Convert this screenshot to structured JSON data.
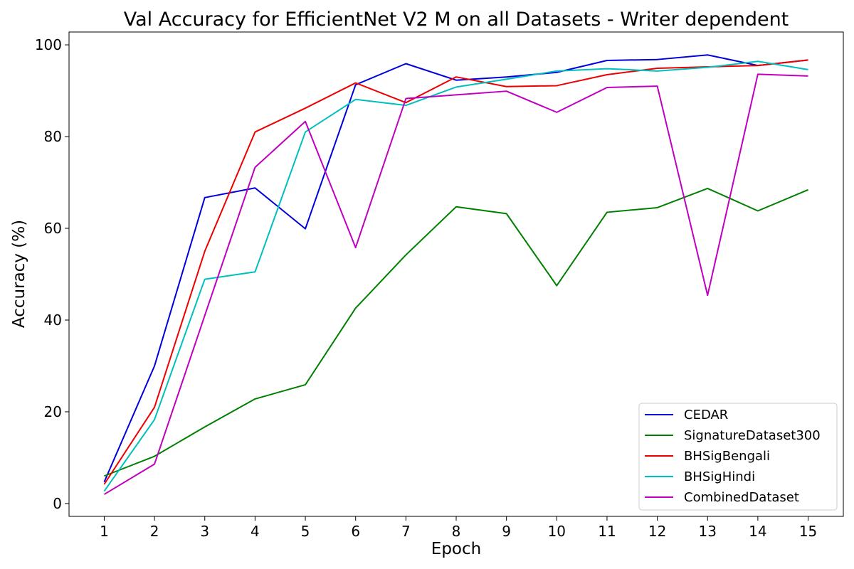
{
  "chart_data": {
    "type": "line",
    "title": "Val Accuracy for EfficientNet V2 M on all Datasets - Writer dependent",
    "xlabel": "Epoch",
    "ylabel": "Accuracy (%)",
    "x": [
      1,
      2,
      3,
      4,
      5,
      6,
      7,
      8,
      9,
      10,
      11,
      12,
      13,
      14,
      15
    ],
    "xlim": [
      0.3,
      15.7
    ],
    "ylim": [
      -2.8,
      102.8
    ],
    "yticks": [
      0,
      20,
      40,
      60,
      80,
      100
    ],
    "grid": false,
    "legend_position": "bottom-right",
    "series": [
      {
        "name": "CEDAR",
        "color": "#0000dd",
        "values": [
          4.7,
          30.0,
          66.7,
          68.8,
          59.9,
          91.3,
          95.9,
          92.3,
          93.0,
          94.0,
          96.6,
          96.8,
          97.8,
          95.5,
          96.7
        ]
      },
      {
        "name": "SignatureDataset300",
        "color": "#008000",
        "values": [
          6.0,
          10.3,
          16.7,
          22.8,
          25.9,
          42.6,
          54.2,
          64.7,
          63.2,
          47.5,
          63.5,
          64.5,
          68.7,
          63.8,
          68.4
        ]
      },
      {
        "name": "BHSigBengali",
        "color": "#ee0000",
        "values": [
          4.2,
          21.0,
          55.0,
          81.0,
          86.2,
          91.7,
          87.4,
          93.0,
          90.9,
          91.1,
          93.5,
          94.9,
          95.2,
          95.5,
          96.7
        ]
      },
      {
        "name": "BHSigHindi",
        "color": "#00bfbf",
        "values": [
          2.7,
          18.3,
          48.9,
          50.5,
          81.0,
          88.1,
          86.8,
          90.8,
          92.5,
          94.3,
          94.8,
          94.3,
          95.1,
          96.4,
          94.6
        ]
      },
      {
        "name": "CombinedDataset",
        "color": "#bf00bf",
        "values": [
          2.0,
          8.6,
          41.0,
          73.3,
          83.3,
          55.8,
          88.3,
          89.1,
          89.9,
          85.3,
          90.7,
          91.0,
          45.4,
          93.6,
          93.2
        ]
      }
    ]
  }
}
